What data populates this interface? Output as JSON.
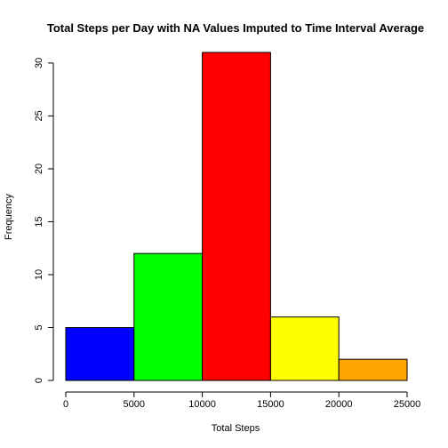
{
  "chart_data": {
    "type": "bar",
    "title": "Total Steps per Day with NA Values Imputed to Time Interval Average",
    "xlabel": "Total Steps",
    "ylabel": "Frequency",
    "bins": [
      {
        "from": 0,
        "to": 5000,
        "count": 5,
        "color": "#0000FF"
      },
      {
        "from": 5000,
        "to": 10000,
        "count": 12,
        "color": "#00FF00"
      },
      {
        "from": 10000,
        "to": 15000,
        "count": 31,
        "color": "#FF0000"
      },
      {
        "from": 15000,
        "to": 20000,
        "count": 6,
        "color": "#FFFF00"
      },
      {
        "from": 20000,
        "to": 25000,
        "count": 2,
        "color": "#FFA500"
      }
    ],
    "x_ticks": [
      "0",
      "5000",
      "10000",
      "15000",
      "20000",
      "25000"
    ],
    "x_tick_values": [
      0,
      5000,
      10000,
      15000,
      20000,
      25000
    ],
    "y_ticks": [
      "0",
      "5",
      "10",
      "15",
      "20",
      "25",
      "30"
    ],
    "y_tick_values": [
      0,
      5,
      10,
      15,
      20,
      25,
      30
    ],
    "xlim": [
      0,
      25000
    ],
    "ylim": [
      0,
      31
    ],
    "grid": false,
    "legend": "none"
  }
}
